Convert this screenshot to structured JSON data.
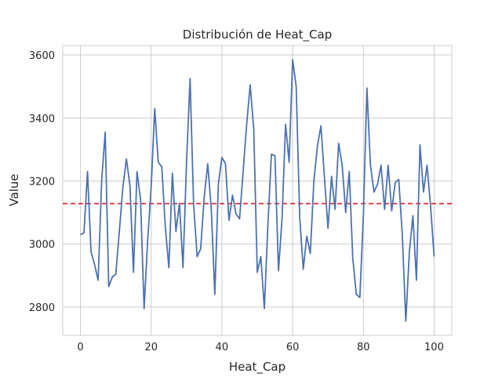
{
  "chart_data": {
    "type": "line",
    "title": "Distribución de Heat_Cap",
    "xlabel": "Heat_Cap",
    "ylabel": "Value",
    "xlim": [
      -5,
      105
    ],
    "ylim": [
      2710,
      3630
    ],
    "xticks": [
      0,
      20,
      40,
      60,
      80,
      100
    ],
    "yticks": [
      2800,
      3000,
      3200,
      3400,
      3600
    ],
    "grid": true,
    "legend": "none",
    "reference_line": {
      "y": 3128,
      "style": "dashed",
      "color": "#e41a1c"
    },
    "series": [
      {
        "color": "#4c72b0",
        "x": [
          0,
          1,
          2,
          3,
          4,
          5,
          6,
          7,
          8,
          9,
          10,
          11,
          12,
          13,
          14,
          15,
          16,
          17,
          18,
          19,
          20,
          21,
          22,
          23,
          24,
          25,
          26,
          27,
          28,
          29,
          30,
          31,
          32,
          33,
          34,
          35,
          36,
          37,
          38,
          39,
          40,
          41,
          42,
          43,
          44,
          45,
          46,
          47,
          48,
          49,
          50,
          51,
          52,
          53,
          54,
          55,
          56,
          57,
          58,
          59,
          60,
          61,
          62,
          63,
          64,
          65,
          66,
          67,
          68,
          69,
          70,
          71,
          72,
          73,
          74,
          75,
          76,
          77,
          78,
          79,
          80,
          81,
          82,
          83,
          84,
          85,
          86,
          87,
          88,
          89,
          90,
          91,
          92,
          93,
          94,
          95,
          96,
          97,
          98,
          99,
          100
        ],
        "values": [
          3030,
          3035,
          3230,
          2975,
          2935,
          2885,
          3200,
          3355,
          2865,
          2895,
          2905,
          3040,
          3180,
          3270,
          3185,
          2910,
          3230,
          3140,
          2795,
          3010,
          3180,
          3430,
          3260,
          3245,
          3055,
          2925,
          3225,
          3040,
          3130,
          2925,
          3260,
          3525,
          3125,
          2960,
          2985,
          3150,
          3255,
          3110,
          2840,
          3190,
          3275,
          3255,
          3075,
          3155,
          3095,
          3080,
          3230,
          3380,
          3505,
          3365,
          2910,
          2960,
          2795,
          3060,
          3285,
          3280,
          2915,
          3080,
          3380,
          3260,
          3585,
          3500,
          3085,
          2920,
          3025,
          2970,
          3200,
          3310,
          3375,
          3210,
          3050,
          3215,
          3110,
          3320,
          3250,
          3100,
          3230,
          2955,
          2840,
          2830,
          3090,
          3495,
          3250,
          3165,
          3190,
          3250,
          3110,
          3250,
          3105,
          3195,
          3205,
          3030,
          2755,
          2975,
          3090,
          2885,
          3315,
          3165,
          3250,
          3120,
          2960
        ]
      }
    ]
  }
}
